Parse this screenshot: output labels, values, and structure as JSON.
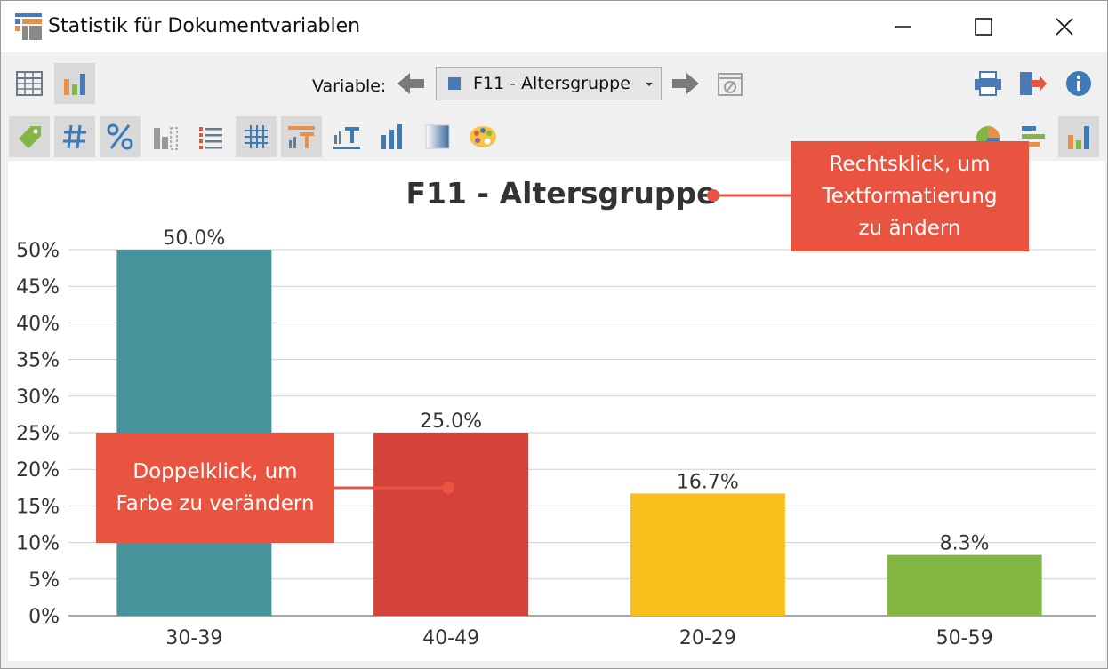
{
  "window": {
    "title": "Statistik für Dokumentvariablen"
  },
  "toolbar": {
    "variable_label": "Variable:",
    "variable_selected": "F11 - Altersgruppe"
  },
  "callouts": {
    "top_line1": "Rechtsklick, um",
    "top_line2": "Textformatierung",
    "top_line3": "zu ändern",
    "left_line1": "Doppelklick, um",
    "left_line2": "Farbe zu verändern"
  },
  "chart_data": {
    "type": "bar",
    "title": "F11 - Altersgruppe",
    "categories": [
      "30-39",
      "40-49",
      "20-29",
      "50-59"
    ],
    "values": [
      50.0,
      25.0,
      16.7,
      8.3
    ],
    "value_labels": [
      "50.0%",
      "25.0%",
      "16.7%",
      "8.3%"
    ],
    "colors": [
      "#46939b",
      "#d4423c",
      "#fbbf1c",
      "#83b642"
    ],
    "yticks": [
      "0%",
      "5%",
      "10%",
      "15%",
      "20%",
      "25%",
      "30%",
      "35%",
      "40%",
      "45%",
      "50%"
    ],
    "ylim": [
      0,
      50
    ],
    "grid": true,
    "xlabel": "",
    "ylabel": ""
  },
  "colors": {
    "callout": "#e85440",
    "accent_blue": "#3d7ab8"
  }
}
